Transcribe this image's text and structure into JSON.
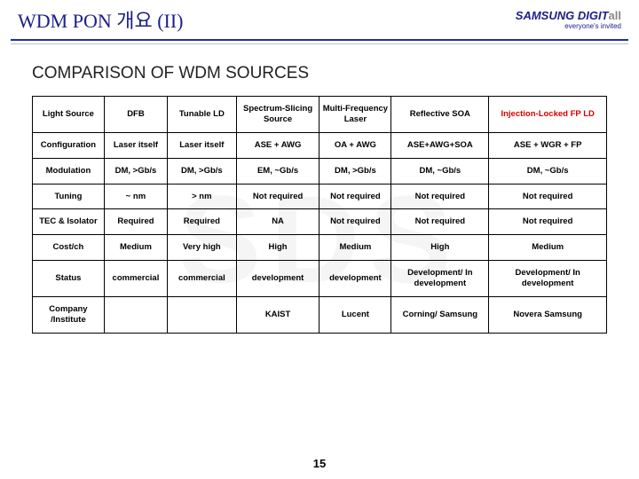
{
  "watermark_text": "SDS",
  "header": {
    "title": "WDM PON 개요 (II)",
    "logo_main": "SAMSUNG DIGIT",
    "logo_suffix": "all",
    "logo_sub": "everyone's invited"
  },
  "subtitle": "COMPARISON OF WDM SOURCES",
  "page_number": "15",
  "table": {
    "rows": [
      [
        "Light Source",
        "DFB",
        "Tunable LD",
        "Spectrum-Slicing Source",
        "Multi-Frequency Laser",
        "Reflective SOA",
        "Injection-Locked FP LD"
      ],
      [
        "Configuration",
        "Laser itself",
        "Laser itself",
        "ASE + AWG",
        "OA + AWG",
        "ASE+AWG+SOA",
        "ASE + WGR + FP"
      ],
      [
        "Modulation",
        "DM, >Gb/s",
        "DM, >Gb/s",
        "EM, ~Gb/s",
        "DM, >Gb/s",
        "DM, ~Gb/s",
        "DM, ~Gb/s"
      ],
      [
        "Tuning",
        "~ nm",
        "> nm",
        "Not required",
        "Not required",
        "Not required",
        "Not required"
      ],
      [
        "TEC & Isolator",
        "Required",
        "Required",
        "NA",
        "Not required",
        "Not required",
        "Not required"
      ],
      [
        "Cost/ch",
        "Medium",
        "Very high",
        "High",
        "Medium",
        "High",
        "Medium"
      ],
      [
        "Status",
        "commercial",
        "commercial",
        "development",
        "development",
        "Development/ In development",
        "Development/ In development"
      ],
      [
        "Company /Institute",
        "",
        "",
        "KAIST",
        "Lucent",
        "Corning/ Samsung",
        "Novera Samsung"
      ]
    ],
    "red_cell": {
      "row": 0,
      "col": 6
    }
  }
}
